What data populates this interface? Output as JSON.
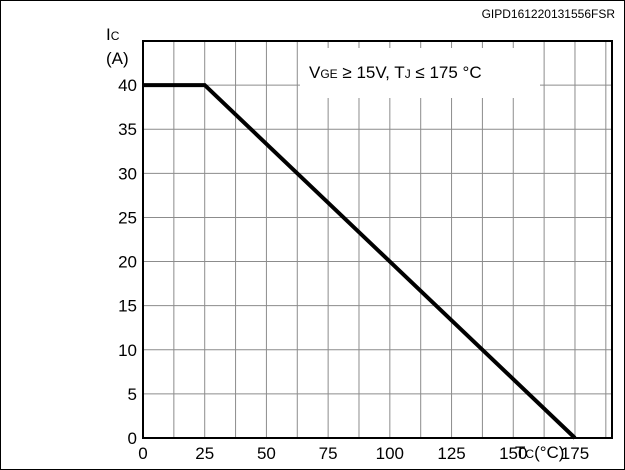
{
  "figure_code": "GIPD161220131556FSR",
  "chart_data": {
    "type": "line",
    "ylabel": {
      "main": "I",
      "sub": "C",
      "unit": "(A)"
    },
    "xlabel": {
      "main": "T",
      "sub": "C",
      "unit": "(°C)"
    },
    "xlim": [
      0,
      190
    ],
    "ylim": [
      0,
      45
    ],
    "x_ticks": [
      0,
      25,
      50,
      75,
      100,
      125,
      150,
      175
    ],
    "y_ticks": [
      0,
      5,
      10,
      15,
      20,
      25,
      30,
      35,
      40
    ],
    "x_tick_labels": [
      "0",
      "25",
      "50",
      "75",
      "100",
      "125",
      "150",
      "175"
    ],
    "y_tick_labels": [
      "0",
      "5",
      "10",
      "15",
      "20",
      "25",
      "30",
      "35",
      "40"
    ],
    "grid": true,
    "grid_x_step": 12.5,
    "grid_y_step": 5,
    "annotation": {
      "vge_main": "V",
      "vge_sub": "GE",
      "vge_rest": " ≥ 15V, T",
      "tj_sub": "J",
      "tj_rest": " ≤ 175 °C"
    },
    "series": [
      {
        "x": [
          0,
          25,
          175
        ],
        "y": [
          40,
          40,
          0
        ],
        "color": "#000000"
      }
    ]
  }
}
